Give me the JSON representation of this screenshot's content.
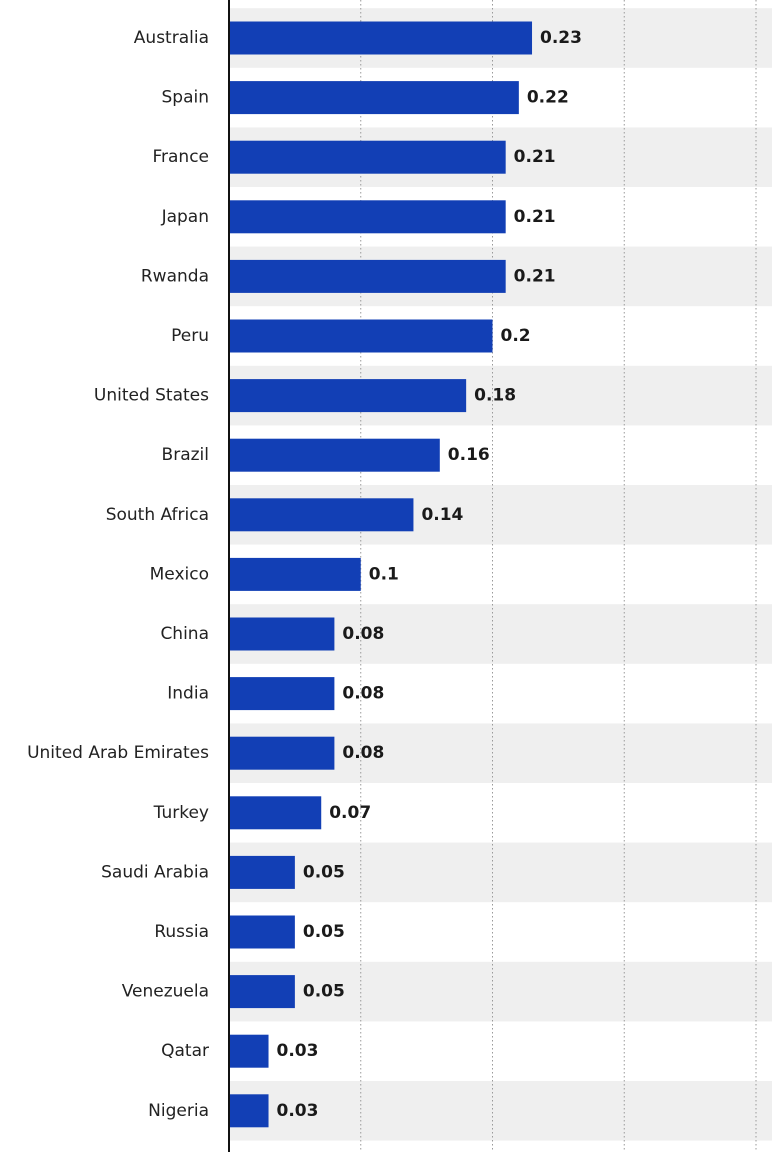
{
  "chart_data": {
    "type": "bar",
    "orientation": "horizontal",
    "categories": [
      "Australia",
      "Spain",
      "France",
      "Japan",
      "Rwanda",
      "Peru",
      "United States",
      "Brazil",
      "South Africa",
      "Mexico",
      "China",
      "India",
      "United Arab Emirates",
      "Turkey",
      "Saudi Arabia",
      "Russia",
      "Venezuela",
      "Qatar",
      "Nigeria"
    ],
    "values": [
      0.23,
      0.22,
      0.21,
      0.21,
      0.21,
      0.2,
      0.18,
      0.16,
      0.14,
      0.1,
      0.08,
      0.08,
      0.08,
      0.07,
      0.05,
      0.05,
      0.05,
      0.03,
      0.03
    ],
    "value_labels": [
      "0.23",
      "0.22",
      "0.21",
      "0.21",
      "0.21",
      "0.2",
      "0.18",
      "0.16",
      "0.14",
      "0.1",
      "0.08",
      "0.08",
      "0.08",
      "0.07",
      "0.05",
      "0.05",
      "0.05",
      "0.03",
      "0.03"
    ],
    "xlim": [
      0,
      0.4
    ],
    "x_gridlines": [
      0.1,
      0.2,
      0.3,
      0.4
    ],
    "grid": "vertical dotted",
    "row_banding": true,
    "title": "",
    "xlabel": "",
    "ylabel": ""
  },
  "colors": {
    "bar": "#123fb5",
    "band": "#efefef",
    "axis": "#111111",
    "grid": "#9a9a9a"
  }
}
